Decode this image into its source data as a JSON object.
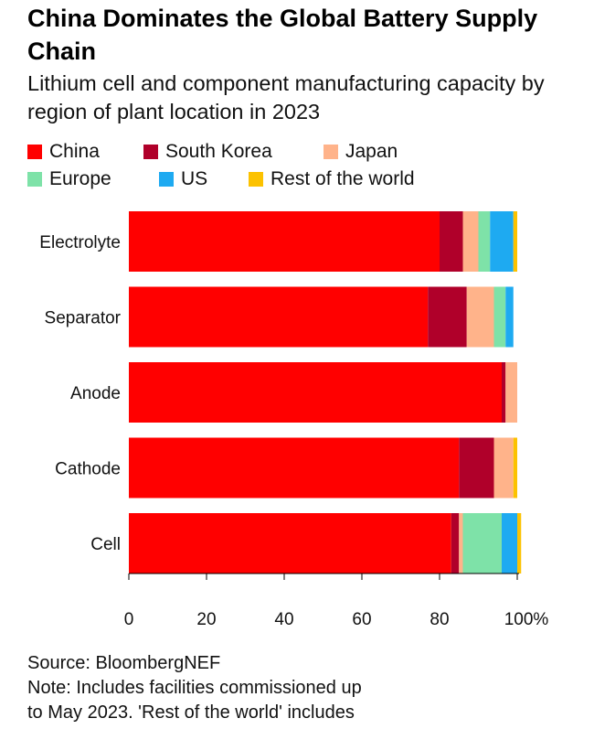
{
  "chart_data": {
    "type": "bar",
    "orientation": "horizontal",
    "stacked": true,
    "title": "China Dominates the Global Battery Supply Chain",
    "subtitle": "Lithium cell and component manufacturing capacity by region of plant location in 2023",
    "categories": [
      "Electrolyte",
      "Separator",
      "Anode",
      "Cathode",
      "Cell"
    ],
    "series": [
      {
        "name": "China",
        "color": "#ff0000",
        "values": [
          80,
          77,
          96,
          85,
          83
        ]
      },
      {
        "name": "South Korea",
        "color": "#b0002a",
        "values": [
          6,
          10,
          1,
          9,
          2
        ]
      },
      {
        "name": "Japan",
        "color": "#ffb38a",
        "values": [
          4,
          7,
          3,
          5,
          1
        ]
      },
      {
        "name": "Europe",
        "color": "#7ee2a8",
        "values": [
          3,
          3,
          0,
          0,
          10
        ]
      },
      {
        "name": "US",
        "color": "#1eaaf1",
        "values": [
          6,
          2,
          0,
          0,
          4
        ]
      },
      {
        "name": "Rest of the world",
        "color": "#fcc200",
        "values": [
          1,
          0,
          0,
          1,
          1
        ]
      }
    ],
    "x_ticks": [
      "0",
      "20",
      "40",
      "60",
      "80",
      "100%"
    ],
    "xlim": [
      0,
      100
    ],
    "legend_position": "top",
    "grid": false
  },
  "footer": {
    "source": "Source: BloombergNEF",
    "note_line1": "Note: Includes facilities commissioned up",
    "note_line2": "to May 2023. 'Rest of the world' includes"
  }
}
